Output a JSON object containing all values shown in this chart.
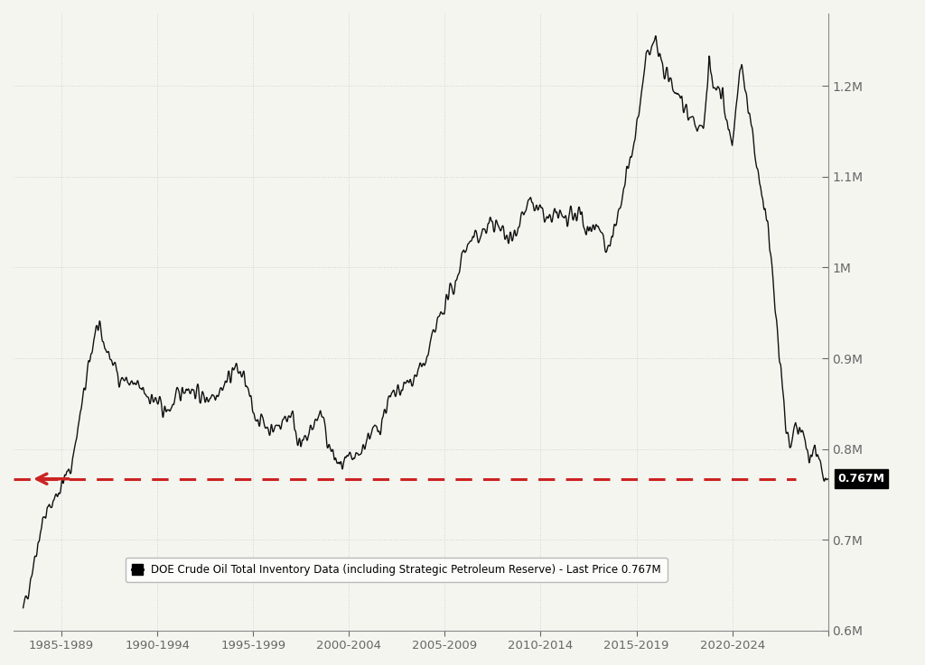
{
  "title": "",
  "ylabel": "",
  "legend_text": "DOE Crude Oil Total Inventory Data (including Strategic Petroleum Reserve) - Last Price 0.767M",
  "last_price_label": "0.767M",
  "last_price_value": 0.767,
  "dashed_line_value": 0.767,
  "ylim": [
    0.6,
    1.28
  ],
  "yticks": [
    0.6,
    0.7,
    0.8,
    0.9,
    1.0,
    1.1,
    1.2
  ],
  "ytick_labels": [
    "0.6M",
    "0.7M",
    "0.8M",
    "0.9M",
    "1M",
    "1.1M",
    "1.2M"
  ],
  "background_color": "#f5f5f0",
  "line_color": "#111111",
  "grid_color": "#cccccc",
  "dashed_color": "#cc2222",
  "x_start_year": 1982.5,
  "x_end_year": 2025.0,
  "xtick_positions": [
    1985,
    1990,
    1995,
    2000,
    2005,
    2010,
    2015,
    2020,
    2025
  ],
  "xtick_labels": [
    "1985-1989",
    "1990-1994",
    "1995-1999",
    "2000-2004",
    "2005-2009",
    "2010-2014",
    "2015-2019",
    "2020-2024",
    ""
  ]
}
